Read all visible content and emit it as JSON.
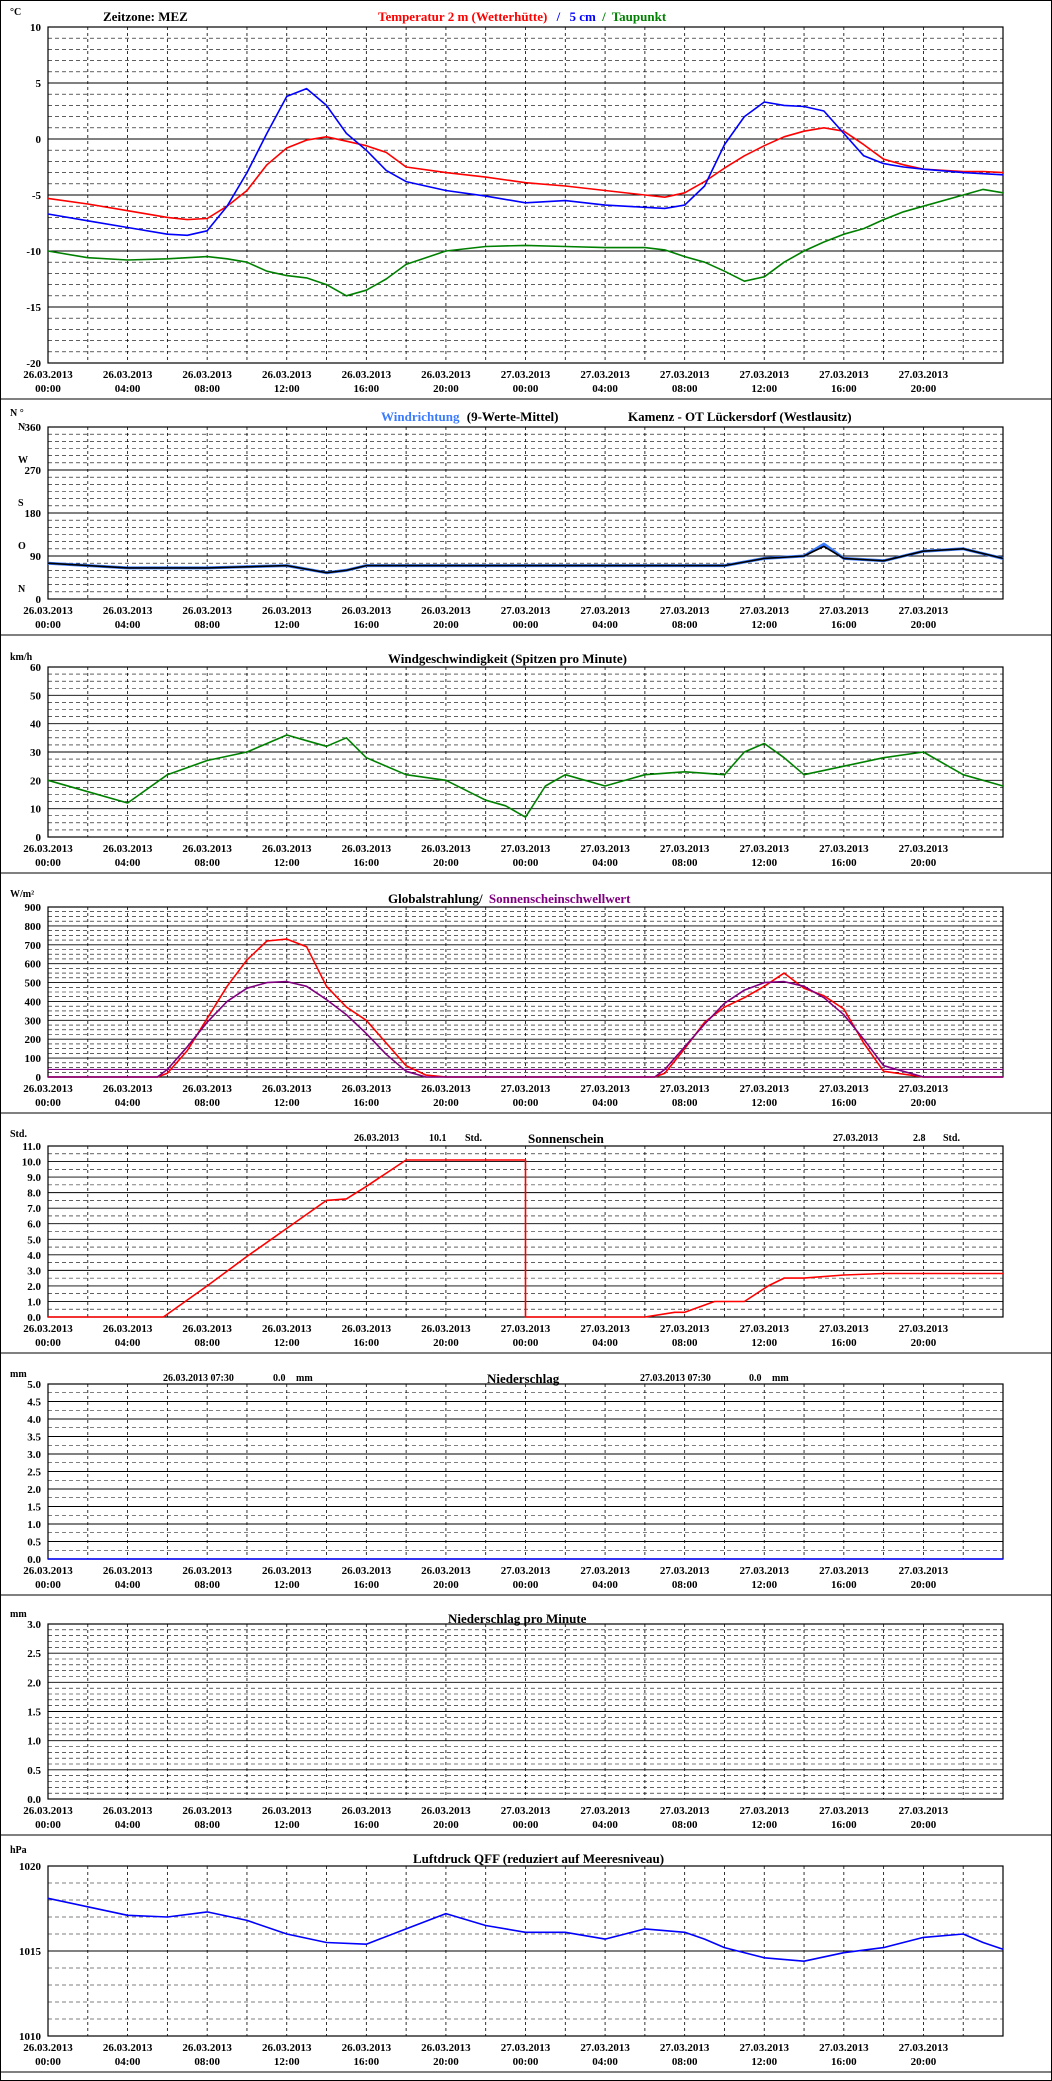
{
  "x_labels": [
    [
      "26.03.2013",
      "00:00"
    ],
    [
      "26.03.2013",
      "04:00"
    ],
    [
      "26.03.2013",
      "08:00"
    ],
    [
      "26.03.2013",
      "12:00"
    ],
    [
      "26.03.2013",
      "16:00"
    ],
    [
      "26.03.2013",
      "20:00"
    ],
    [
      "27.03.2013",
      "00:00"
    ],
    [
      "27.03.2013",
      "04:00"
    ],
    [
      "27.03.2013",
      "08:00"
    ],
    [
      "27.03.2013",
      "12:00"
    ],
    [
      "27.03.2013",
      "16:00"
    ],
    [
      "27.03.2013",
      "20:00"
    ]
  ],
  "colors": {
    "red": "#ff0000",
    "blue": "#0000ff",
    "green": "#008000",
    "purple": "#800080",
    "black": "#000000",
    "lightblue": "#3b7bff",
    "grid": "#000000"
  },
  "panels": {
    "temp": {
      "unit": "°C",
      "zone": "Zeitzone: MEZ",
      "title_red": "Temperatur 2 m (Wetterhütte)",
      "title_sep": "/",
      "title_blue": "5 cm",
      "title_sep2": "/",
      "title_green": "Taupunkt"
    },
    "wdir": {
      "unit": "N °",
      "title_blue": "Windrichtung",
      "title_black": "(9-Werte-Mittel)",
      "station": "Kamenz - OT Lückersdorf (Westlausitz)",
      "letters": [
        "N",
        "W",
        "S",
        "O",
        "N"
      ]
    },
    "wspd": {
      "unit": "km/h",
      "title": "Windgeschwindigkeit (Spitzen pro Minute)"
    },
    "glob": {
      "unit": "W/m²",
      "title_black": "Globalstrahlung/",
      "title_purple": "Sonnenscheinschwellwert"
    },
    "sun": {
      "unit": "Std.",
      "title": "Sonnenschein",
      "left_date": "26.03.2013",
      "left_value": "10.1",
      "left_unit": "Std.",
      "right_date": "27.03.2013",
      "right_value": "2.8",
      "right_unit": "Std."
    },
    "prec": {
      "unit": "mm",
      "title": "Niederschlag",
      "left_date": "26.03.2013 07:30",
      "left_value": "0.0",
      "left_unit": "mm",
      "right_date": "27.03.2013 07:30",
      "right_value": "0.0",
      "right_unit": "mm"
    },
    "precmin": {
      "unit": "mm",
      "title": "Niederschlag pro Minute"
    },
    "press": {
      "unit": "hPa",
      "title": "Luftdruck QFF (reduziert auf Meeresniveau)"
    }
  },
  "chart_data": [
    {
      "type": "line",
      "id": "temp",
      "ylim": [
        -20,
        10
      ],
      "yticks": [
        "10",
        "5",
        "0",
        "-5",
        "-10",
        "-15",
        "-20"
      ],
      "x": [
        0,
        2,
        4,
        6,
        7,
        8,
        9,
        10,
        11,
        12,
        13,
        14,
        15,
        16,
        17,
        18,
        20,
        22,
        24,
        26,
        28,
        30,
        31,
        32,
        33,
        34,
        35,
        36,
        37,
        38,
        39,
        40,
        41,
        42,
        43,
        44,
        46,
        47,
        48
      ],
      "series": [
        {
          "name": "Temperatur 2 m (Wetterhütte)",
          "color": "red",
          "values": [
            -5.3,
            -5.8,
            -6.4,
            -7.0,
            -7.2,
            -7.1,
            -6.0,
            -4.6,
            -2.3,
            -0.8,
            -0.1,
            0.2,
            -0.2,
            -0.6,
            -1.2,
            -2.5,
            -3.0,
            -3.4,
            -3.9,
            -4.2,
            -4.6,
            -5.0,
            -5.2,
            -4.8,
            -3.8,
            -2.6,
            -1.5,
            -0.6,
            0.2,
            0.7,
            1.0,
            0.7,
            -0.5,
            -1.8,
            -2.3,
            -2.7,
            -2.9,
            -2.9,
            -3.0
          ]
        },
        {
          "name": "5 cm",
          "color": "blue",
          "values": [
            -6.7,
            -7.3,
            -7.9,
            -8.5,
            -8.6,
            -8.2,
            -6.0,
            -3.0,
            0.5,
            3.8,
            4.5,
            3.0,
            0.5,
            -1.0,
            -2.8,
            -3.8,
            -4.6,
            -5.1,
            -5.7,
            -5.5,
            -5.9,
            -6.1,
            -6.2,
            -5.9,
            -4.2,
            -0.5,
            2.0,
            3.3,
            3.0,
            2.9,
            2.5,
            0.5,
            -1.5,
            -2.2,
            -2.5,
            -2.7,
            -3.0,
            -3.1,
            -3.2
          ]
        },
        {
          "name": "Taupunkt",
          "color": "green",
          "values": [
            -10.0,
            -10.6,
            -10.8,
            -10.7,
            -10.6,
            -10.5,
            -10.7,
            -11.0,
            -11.8,
            -12.2,
            -12.4,
            -13.0,
            -14.0,
            -13.5,
            -12.5,
            -11.2,
            -10.0,
            -9.6,
            -9.5,
            -9.6,
            -9.7,
            -9.7,
            -9.9,
            -10.5,
            -11.0,
            -11.8,
            -12.7,
            -12.3,
            -11.0,
            -10.0,
            -9.2,
            -8.5,
            -8.0,
            -7.2,
            -6.5,
            -6.0,
            -5.0,
            -4.5,
            -4.8
          ]
        }
      ]
    },
    {
      "type": "line",
      "id": "wdir",
      "ylim": [
        0,
        360
      ],
      "yticks": [
        "360",
        "270",
        "180",
        "90",
        "0"
      ],
      "x": [
        0,
        4,
        8,
        12,
        14,
        15,
        16,
        20,
        24,
        28,
        32,
        34,
        36,
        38,
        39,
        40,
        42,
        44,
        46,
        48
      ],
      "series": [
        {
          "name": "Windrichtung",
          "color": "lightblue",
          "values": [
            75,
            65,
            65,
            70,
            55,
            60,
            70,
            70,
            70,
            70,
            70,
            70,
            85,
            90,
            115,
            85,
            80,
            100,
            105,
            85
          ]
        },
        {
          "name": "(9-Werte-Mittel)",
          "color": "black",
          "values": [
            75,
            65,
            65,
            70,
            55,
            60,
            70,
            70,
            70,
            70,
            70,
            70,
            85,
            90,
            110,
            85,
            80,
            100,
            105,
            85
          ]
        }
      ]
    },
    {
      "type": "line",
      "id": "wspd",
      "ylim": [
        0,
        60
      ],
      "yticks": [
        "60",
        "50",
        "40",
        "30",
        "20",
        "10",
        "0"
      ],
      "x": [
        0,
        2,
        4,
        6,
        8,
        10,
        12,
        13,
        14,
        15,
        16,
        18,
        20,
        22,
        23,
        24,
        25,
        26,
        28,
        30,
        32,
        34,
        35,
        36,
        37,
        38,
        40,
        42,
        44,
        46,
        48
      ],
      "series": [
        {
          "name": "Windgeschwindigkeit",
          "color": "green",
          "values": [
            20,
            16,
            12,
            22,
            27,
            30,
            36,
            34,
            32,
            35,
            28,
            22,
            20,
            13,
            11,
            7,
            18,
            22,
            18,
            22,
            23,
            22,
            30,
            33,
            28,
            22,
            25,
            28,
            30,
            22,
            18
          ]
        }
      ]
    },
    {
      "type": "line",
      "id": "glob",
      "ylim": [
        0,
        900
      ],
      "yticks": [
        "900",
        "800",
        "700",
        "600",
        "500",
        "400",
        "300",
        "200",
        "100",
        "0"
      ],
      "x": [
        0,
        5,
        5.5,
        6,
        7,
        8,
        9,
        10,
        11,
        12,
        13,
        14,
        15,
        16,
        17,
        18,
        19,
        20,
        26,
        30,
        30.5,
        31,
        32,
        33,
        34,
        35,
        36,
        37,
        38,
        39,
        40,
        41,
        42,
        44,
        48
      ],
      "series": [
        {
          "name": "Globalstrahlung",
          "color": "red",
          "values": [
            0,
            0,
            0,
            20,
            140,
            310,
            480,
            620,
            720,
            730,
            690,
            480,
            370,
            300,
            180,
            60,
            10,
            0,
            0,
            0,
            0,
            20,
            150,
            290,
            370,
            420,
            480,
            550,
            470,
            430,
            360,
            180,
            30,
            0,
            0
          ]
        },
        {
          "name": "Sonnenscheinschwellwert",
          "color": "purple",
          "values": [
            0,
            0,
            0,
            40,
            160,
            290,
            400,
            470,
            500,
            505,
            480,
            410,
            330,
            230,
            120,
            30,
            0,
            0,
            0,
            0,
            0,
            40,
            160,
            280,
            390,
            460,
            500,
            505,
            480,
            420,
            330,
            200,
            60,
            0,
            0
          ]
        }
      ],
      "threshold": {
        "name": "Sonnenscheinschwellwert",
        "value": 40,
        "color": "purple"
      }
    },
    {
      "type": "line",
      "id": "sun",
      "ylim": [
        0,
        11
      ],
      "yticks": [
        "11.0",
        "10.0",
        "9.0",
        "8.0",
        "7.0",
        "6.0",
        "5.0",
        "4.0",
        "3.0",
        "2.0",
        "1.0",
        "0.0"
      ],
      "x": [
        0,
        5.8,
        8,
        10,
        12,
        14,
        15,
        16,
        18,
        24,
        24,
        30,
        31.5,
        32,
        33.5,
        35,
        36.2,
        37,
        38,
        40,
        42,
        44,
        48
      ],
      "series": [
        {
          "name": "Sonnenschein",
          "color": "red",
          "values": [
            0,
            0,
            2.0,
            3.9,
            5.7,
            7.5,
            7.6,
            8.4,
            10.1,
            10.1,
            0,
            0,
            0.3,
            0.3,
            1.0,
            1.0,
            2.0,
            2.5,
            2.5,
            2.7,
            2.8,
            2.8,
            2.8
          ]
        }
      ]
    },
    {
      "type": "line",
      "id": "prec",
      "ylim": [
        0,
        5
      ],
      "yticks": [
        "5.0",
        "4.5",
        "4.0",
        "3.5",
        "3.0",
        "2.5",
        "2.0",
        "1.5",
        "1.0",
        "0.5",
        "0.0"
      ],
      "x": [
        0,
        48
      ],
      "series": [
        {
          "name": "Niederschlag",
          "color": "blue",
          "values": [
            0,
            0
          ]
        }
      ]
    },
    {
      "type": "line",
      "id": "precmin",
      "ylim": [
        0,
        3
      ],
      "yticks": [
        "3.0",
        "2.5",
        "2.0",
        "1.5",
        "1.0",
        "0.5",
        "0.0"
      ],
      "x": [
        0,
        48
      ],
      "series": []
    },
    {
      "type": "line",
      "id": "press",
      "ylim": [
        1010,
        1020
      ],
      "yticks": [
        "1020",
        "1015",
        "1010"
      ],
      "x": [
        0,
        2,
        4,
        6,
        8,
        10,
        12,
        14,
        16,
        18,
        20,
        22,
        24,
        26,
        28,
        30,
        32,
        33,
        34,
        36,
        38,
        40,
        42,
        44,
        46,
        47,
        48
      ],
      "series": [
        {
          "name": "Luftdruck QFF",
          "color": "blue",
          "values": [
            1018.1,
            1017.6,
            1017.1,
            1017.0,
            1017.3,
            1016.8,
            1016.0,
            1015.5,
            1015.4,
            1016.3,
            1017.2,
            1016.5,
            1016.1,
            1016.1,
            1015.7,
            1016.3,
            1016.1,
            1015.7,
            1015.2,
            1014.6,
            1014.4,
            1014.9,
            1015.2,
            1015.8,
            1016.0,
            1015.5,
            1015.1
          ]
        }
      ]
    }
  ]
}
